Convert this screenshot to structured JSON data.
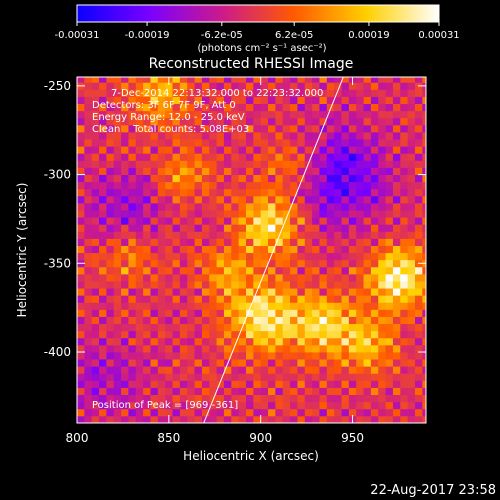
{
  "colorbar": {
    "ticks": [
      "-0.00031",
      "-0.00019",
      "-6.2e-05",
      "6.2e-05",
      "0.00019",
      "0.00031"
    ],
    "tick_values": [
      -0.00031,
      -0.00019,
      -6.2e-05,
      6.2e-05,
      0.00019,
      0.00031
    ],
    "range": [
      -0.00031,
      0.00031
    ],
    "unit_label": "(photons cm⁻² s⁻¹ asec⁻²)",
    "colors": [
      "#0a00ff",
      "#7a00ff",
      "#cc1a8c",
      "#ff5a00",
      "#ffd000",
      "#ffffff"
    ]
  },
  "chart_data": {
    "type": "heatmap",
    "title": "Reconstructed RHESSI Image",
    "xlabel": "Heliocentric X (arcsec)",
    "ylabel": "Heliocentric Y (arcsec)",
    "xlim": [
      800,
      990
    ],
    "ylim": [
      -440,
      -245
    ],
    "xticks": [
      "800",
      "850",
      "900",
      "950"
    ],
    "xtick_values": [
      800,
      850,
      900,
      950
    ],
    "yticks": [
      "-250",
      "-300",
      "-350",
      "-400"
    ],
    "ytick_values": [
      -250,
      -300,
      -350,
      -400
    ],
    "annotations": [
      "7-Dec-2014 22:13:32.000 to 22:23:32.000",
      "Detectors: 3F 6F 7F 9F, Att 0",
      "Energy Range: 12.0 - 25.0 keV",
      "Clean    Total counts: 5.08E+03"
    ],
    "peak_label": "Position of Peak = [969,-361]",
    "peak": [
      969,
      -361
    ],
    "limb_line": [
      [
        869,
        -440
      ],
      [
        945,
        -245
      ]
    ],
    "grid": false,
    "blobs": [
      {
        "x": 902,
        "y": -380,
        "amp": 0.85,
        "s": 14
      },
      {
        "x": 975,
        "y": -358,
        "amp": 0.95,
        "s": 12
      },
      {
        "x": 905,
        "y": -328,
        "amp": 0.8,
        "s": 12
      },
      {
        "x": 920,
        "y": -295,
        "amp": 0.55,
        "s": 12
      },
      {
        "x": 858,
        "y": -300,
        "amp": 0.45,
        "s": 10
      },
      {
        "x": 845,
        "y": -255,
        "amp": 0.5,
        "s": 12
      },
      {
        "x": 935,
        "y": -385,
        "amp": 0.7,
        "s": 12
      },
      {
        "x": 880,
        "y": -355,
        "amp": 0.45,
        "s": 10
      },
      {
        "x": 960,
        "y": -395,
        "amp": 0.6,
        "s": 10
      },
      {
        "x": 828,
        "y": -345,
        "amp": 0.4,
        "s": 10
      },
      {
        "x": 940,
        "y": -300,
        "amp": -0.75,
        "s": 18
      },
      {
        "x": 825,
        "y": -320,
        "amp": -0.4,
        "s": 14
      },
      {
        "x": 815,
        "y": -415,
        "amp": -0.3,
        "s": 16
      }
    ]
  },
  "footer": {
    "timestamp": "22-Aug-2017 23:58"
  }
}
